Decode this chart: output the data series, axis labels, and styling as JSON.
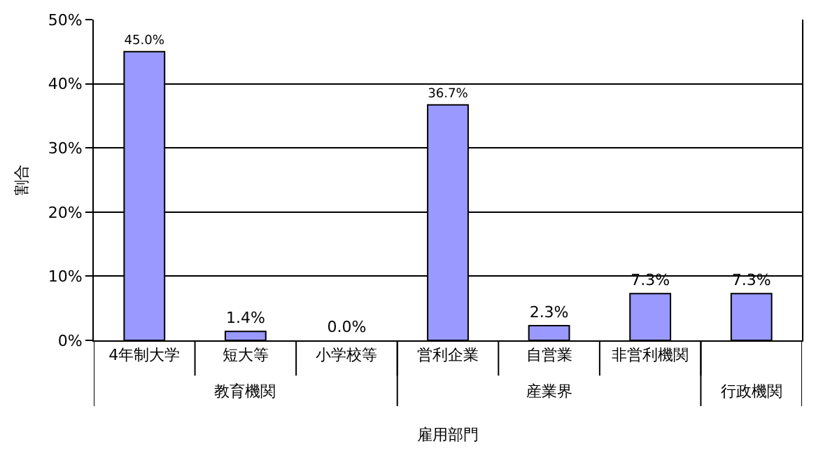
{
  "chart_data": {
    "type": "bar",
    "xlabel": "雇用部門",
    "ylabel": "割合",
    "categories": [
      "4年制大学",
      "短大等",
      "小学校等",
      "営利企業",
      "自営業",
      "非営利機関",
      null
    ],
    "values": [
      45.0,
      1.4,
      0.0,
      36.7,
      2.3,
      7.3,
      7.3
    ],
    "value_labels": [
      "45.0%",
      "1.4%",
      "0.0%",
      "36.7%",
      "2.3%",
      "7.3%",
      "7.3%"
    ],
    "color": "#9999ff",
    "ylim": [
      0,
      50
    ],
    "yticks": [
      {
        "value": 0,
        "label": "0%"
      },
      {
        "value": 10,
        "label": "10%"
      },
      {
        "value": 20,
        "label": "20%"
      },
      {
        "value": 30,
        "label": "30%"
      },
      {
        "value": 40,
        "label": "40%"
      },
      {
        "value": 50,
        "label": "50%"
      }
    ],
    "grid": "y",
    "annotations": [
      "教育機関",
      "産業界",
      "行政機関"
    ]
  }
}
